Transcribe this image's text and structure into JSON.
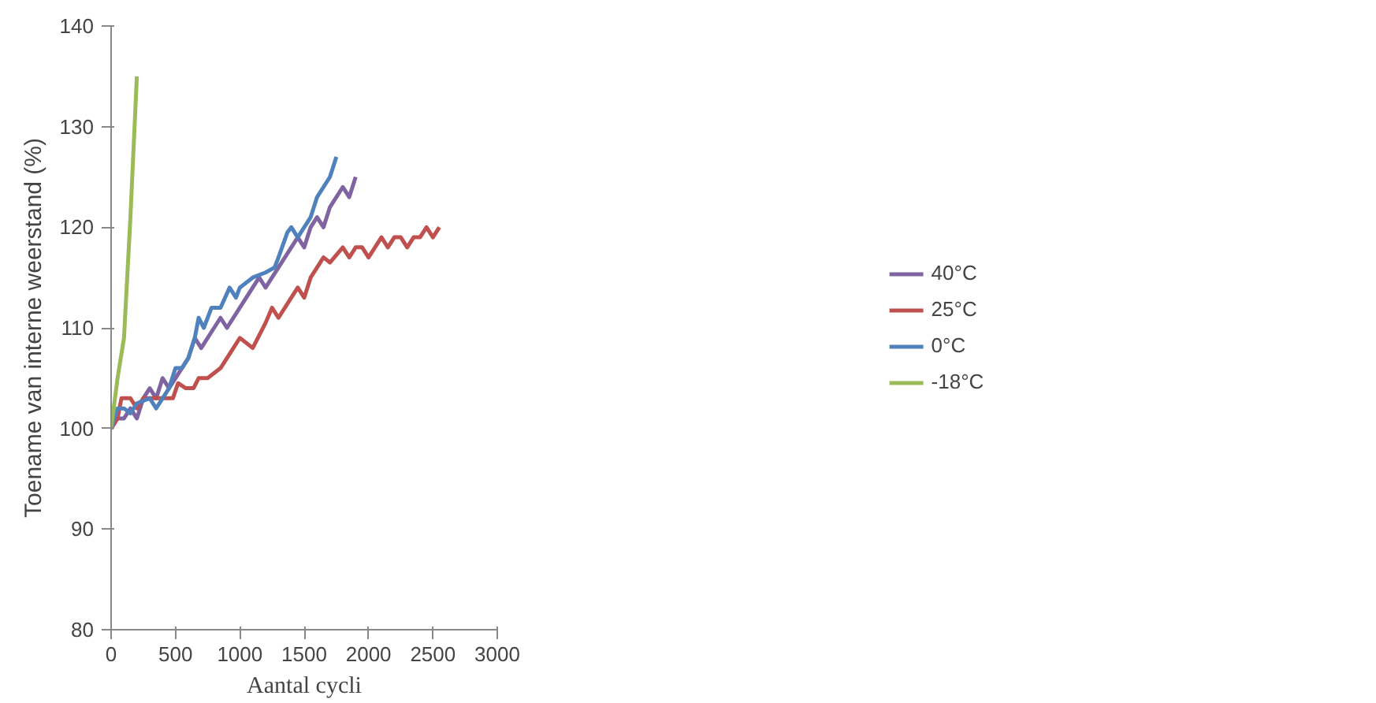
{
  "chart_data": {
    "type": "line",
    "xlabel": "Aantal cycli",
    "ylabel": "Toename van interne weerstand (%)",
    "xlim": [
      0,
      3000
    ],
    "ylim": [
      80,
      140
    ],
    "xticks": [
      0,
      500,
      1000,
      1500,
      2000,
      2500,
      3000
    ],
    "yticks": [
      80,
      90,
      100,
      110,
      120,
      130,
      140
    ],
    "grid": false,
    "legend": "right",
    "marker": "none",
    "line_style": "solid",
    "series": [
      {
        "name": "40°C",
        "color": "#8064a2",
        "x": [
          0,
          50,
          100,
          150,
          200,
          250,
          300,
          350,
          400,
          450,
          500,
          550,
          600,
          650,
          700,
          750,
          850,
          900,
          1000,
          1100,
          1150,
          1200,
          1300,
          1400,
          1450,
          1500,
          1550,
          1600,
          1650,
          1700,
          1800,
          1850,
          1900
        ],
        "values": [
          100,
          101,
          101,
          102,
          101,
          103,
          104,
          103,
          105,
          104,
          105,
          106,
          107,
          109,
          108,
          109,
          111,
          110,
          112,
          114,
          115,
          114,
          116,
          118,
          119,
          118,
          120,
          121,
          120,
          122,
          124,
          123,
          125
        ]
      },
      {
        "name": "25°C",
        "color": "#c0504d",
        "x": [
          0,
          50,
          80,
          150,
          200,
          250,
          300,
          400,
          480,
          520,
          580,
          640,
          680,
          750,
          850,
          950,
          1000,
          1050,
          1100,
          1200,
          1250,
          1300,
          1400,
          1450,
          1500,
          1550,
          1600,
          1650,
          1700,
          1800,
          1850,
          1900,
          1950,
          2000,
          2100,
          2150,
          2200,
          2250,
          2300,
          2350,
          2400,
          2450,
          2500,
          2550
        ],
        "values": [
          100,
          101,
          103,
          103,
          102,
          103,
          103,
          103,
          103,
          104.5,
          104,
          104,
          105,
          105,
          106,
          108,
          109,
          108.5,
          108,
          110.5,
          112,
          111,
          113,
          114,
          113,
          115,
          116,
          117,
          116.5,
          118,
          117,
          118,
          118,
          117,
          119,
          118,
          119,
          119,
          118,
          119,
          119,
          120,
          119,
          120
        ]
      },
      {
        "name": "0°C",
        "color": "#4f81bd",
        "x": [
          0,
          50,
          100,
          150,
          200,
          300,
          350,
          400,
          450,
          500,
          550,
          600,
          650,
          680,
          720,
          780,
          850,
          920,
          970,
          1000,
          1100,
          1200,
          1270,
          1300,
          1370,
          1400,
          1450,
          1500,
          1550,
          1600,
          1700,
          1750
        ],
        "values": [
          100,
          102,
          102,
          101.5,
          102.5,
          103,
          102,
          103,
          104,
          106,
          106,
          107,
          109,
          111,
          110,
          112,
          112,
          114,
          113,
          114,
          115,
          115.5,
          116,
          117,
          119.5,
          120,
          119,
          120,
          121,
          123,
          125,
          127
        ]
      },
      {
        "name": "-18°C",
        "color": "#9bbb59",
        "x": [
          0,
          50,
          100,
          150,
          200
        ],
        "values": [
          100,
          105,
          109,
          121,
          135
        ]
      }
    ]
  }
}
